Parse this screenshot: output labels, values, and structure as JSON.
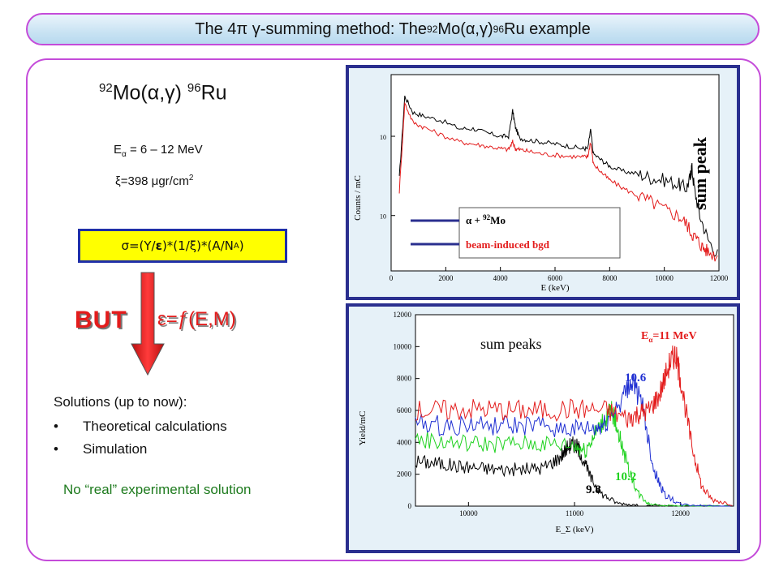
{
  "slide": {
    "title_main": "The 4π γ-summing method: The ",
    "title_sup1": "92",
    "title_mid": "Mo(α,γ)",
    "title_sup2": "96",
    "title_end": "Ru example"
  },
  "left": {
    "reaction_sup1": "92",
    "reaction_mid": "Mo(α,γ) ",
    "reaction_sup2": "96",
    "reaction_end": "Ru",
    "energy_pre": "E",
    "energy_sub": "α",
    "energy_post": " = 6 – 12 MeV",
    "thickness_pre": "ξ=398 μgr/cm",
    "thickness_sup": "2",
    "formula_pre": "σ=(Y/",
    "formula_eps": "ε",
    "formula_mid": ")*(1/ξ)*(A/N",
    "formula_sub": "A",
    "formula_end": ")",
    "but": "BUT",
    "efficiency": "ε=ƒ(E,M)",
    "solutions_heading": "Solutions (up to now):",
    "bullet": "•",
    "solutions": [
      "Theoretical calculations",
      "Simulation"
    ],
    "no_real": "No “real” experimental solution"
  },
  "colors": {
    "accent_border": "#c44bd9",
    "formula_bg": "#ffff00",
    "formula_border": "#1f2fa8",
    "red": "#e31c1c",
    "green": "#1d7a1d",
    "panel_border": "#2a2f8f"
  },
  "chart_data": [
    {
      "type": "line",
      "xlabel": "E (keV)",
      "ylabel": "Counts / mC",
      "xlim": [
        0,
        12000
      ],
      "xticks": [
        0,
        2000,
        4000,
        6000,
        8000,
        10000,
        12000
      ],
      "ytick_label": "10",
      "yscale": "log",
      "annotation": "sum peak",
      "series": [
        {
          "name_pre": "α + ",
          "name_sup": "92",
          "name_post": "Mo",
          "color": "#000000",
          "x": [
            300,
            500,
            800,
            1200,
            1800,
            2500,
            3000,
            3500,
            4000,
            4300,
            4450,
            4550,
            4700,
            5000,
            5500,
            6000,
            6500,
            7000,
            7200,
            7300,
            7400,
            7700,
            8000,
            8500,
            9000,
            9500,
            10000,
            10500,
            10800,
            10950,
            11000,
            11100,
            11300,
            11600,
            12000
          ],
          "y": [
            0.3,
            3.2,
            2.0,
            1.8,
            1.6,
            1.25,
            1.25,
            1.1,
            1.0,
            1.0,
            2.1,
            1.3,
            0.95,
            0.9,
            0.85,
            0.8,
            0.75,
            0.7,
            0.7,
            1.2,
            0.6,
            0.5,
            0.42,
            0.36,
            0.34,
            0.3,
            0.28,
            0.25,
            0.22,
            0.3,
            0.42,
            0.22,
            0.1,
            0.05,
            0.03
          ]
        },
        {
          "name": "beam-induced bgd",
          "color": "#e31c1c",
          "x": [
            300,
            500,
            800,
            1200,
            1800,
            2500,
            3000,
            3500,
            4000,
            4300,
            4450,
            4550,
            4700,
            5000,
            5500,
            6000,
            6500,
            7000,
            7200,
            7300,
            7400,
            7700,
            8000,
            8500,
            9000,
            9500,
            10000,
            10500,
            10800,
            11000,
            11200,
            11400,
            11600,
            12000
          ],
          "y": [
            0.2,
            2.6,
            1.5,
            1.3,
            1.05,
            0.85,
            0.8,
            0.75,
            0.7,
            0.68,
            0.85,
            0.7,
            0.68,
            0.65,
            0.6,
            0.58,
            0.56,
            0.55,
            0.55,
            0.85,
            0.45,
            0.35,
            0.28,
            0.22,
            0.18,
            0.15,
            0.12,
            0.1,
            0.08,
            0.06,
            0.05,
            0.04,
            0.035,
            0.03
          ]
        }
      ]
    },
    {
      "type": "line",
      "xlabel": "E_Σ (keV)",
      "ylabel": "Yield/mC",
      "xlim": [
        9500,
        12500
      ],
      "ylim": [
        0,
        12000
      ],
      "xticks": [
        10000,
        11000,
        12000
      ],
      "yticks": [
        0,
        2000,
        4000,
        6000,
        8000,
        10000,
        12000
      ],
      "annotation_title": "sum peaks",
      "energy_label_pre": "E",
      "energy_label_sub": "α",
      "energy_label_post": "=11 MeV",
      "series": [
        {
          "label": "9.8",
          "color": "#000000",
          "x": [
            9500,
            9700,
            9900,
            10100,
            10300,
            10500,
            10700,
            10850,
            10950,
            11000,
            11050,
            11150,
            11250,
            11400,
            11600,
            12000,
            12500
          ],
          "y": [
            2800,
            2700,
            2500,
            2400,
            2300,
            2300,
            2400,
            3000,
            3800,
            3900,
            3500,
            1800,
            800,
            200,
            50,
            0,
            0
          ]
        },
        {
          "label": "10.2",
          "color": "#1fd21f",
          "x": [
            9500,
            9800,
            10100,
            10400,
            10700,
            11000,
            11100,
            11200,
            11300,
            11350,
            11400,
            11500,
            11600,
            11700,
            11900,
            12200,
            12500
          ],
          "y": [
            4200,
            4000,
            3900,
            3900,
            3900,
            3800,
            3500,
            4600,
            5600,
            6000,
            5000,
            2500,
            800,
            150,
            20,
            0,
            0
          ]
        },
        {
          "label": "10.6",
          "color": "#1f2fd2",
          "x": [
            9500,
            9800,
            10100,
            10400,
            10700,
            11000,
            11200,
            11300,
            11450,
            11550,
            11650,
            11750,
            11850,
            12000,
            12200,
            12500
          ],
          "y": [
            5200,
            5000,
            5100,
            5000,
            5000,
            4800,
            4800,
            5200,
            6800,
            7900,
            6000,
            2200,
            700,
            100,
            30,
            0
          ]
        },
        {
          "label": "",
          "color": "#e31c1c",
          "x": [
            9500,
            9800,
            10100,
            10400,
            10700,
            11000,
            11300,
            11500,
            11600,
            11700,
            11800,
            11900,
            11950,
            12000,
            12100,
            12200,
            12300,
            12500
          ],
          "y": [
            6000,
            6000,
            6100,
            6000,
            6000,
            6100,
            6000,
            5500,
            5800,
            6000,
            7000,
            9000,
            9500,
            8000,
            4000,
            1200,
            400,
            100
          ]
        }
      ]
    }
  ]
}
